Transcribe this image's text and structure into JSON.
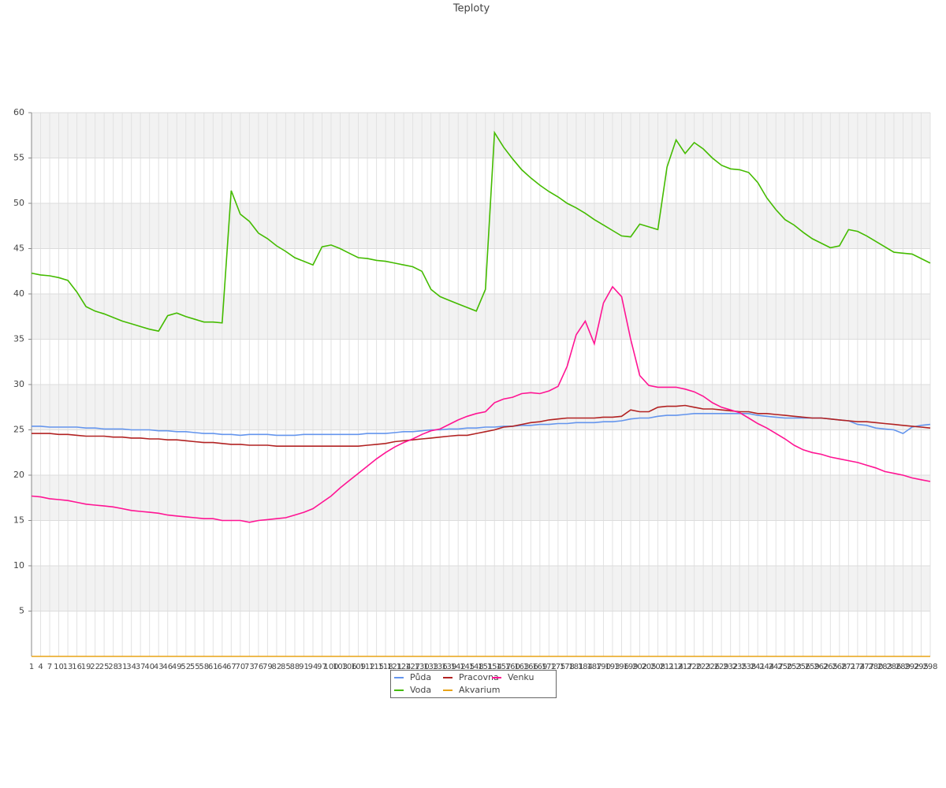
{
  "chart_data": {
    "type": "line",
    "title": "Teploty",
    "categories": [
      1,
      4,
      7,
      10,
      13,
      16,
      19,
      22,
      25,
      28,
      31,
      34,
      37,
      40,
      43,
      46,
      49,
      52,
      55,
      58,
      61,
      64,
      67,
      70,
      73,
      76,
      79,
      82,
      85,
      88,
      91,
      94,
      97,
      100,
      103,
      106,
      109,
      112,
      115,
      118,
      121,
      124,
      127,
      130,
      133,
      136,
      139,
      142,
      145,
      148,
      151,
      154,
      157,
      160,
      163,
      166,
      169,
      172,
      175,
      178,
      181,
      184,
      187,
      190,
      193,
      196,
      199,
      202,
      205,
      208,
      211,
      214,
      217,
      220,
      223,
      226,
      229,
      232,
      235,
      238,
      241,
      244,
      247,
      250,
      253,
      256,
      259,
      262,
      265,
      268,
      271,
      274,
      277,
      280,
      283,
      286,
      289,
      292,
      295,
      298
    ],
    "ylim": [
      0,
      60
    ],
    "yticks": [
      5,
      10,
      15,
      20,
      25,
      30,
      35,
      40,
      45,
      50,
      55,
      60
    ],
    "grid": true,
    "series": [
      {
        "name": "Půda",
        "color": "#6495ed",
        "values": [
          25.4,
          25.4,
          25.3,
          25.3,
          25.3,
          25.3,
          25.2,
          25.2,
          25.1,
          25.1,
          25.1,
          25.0,
          25.0,
          25.0,
          24.9,
          24.9,
          24.8,
          24.8,
          24.7,
          24.6,
          24.6,
          24.5,
          24.5,
          24.4,
          24.5,
          24.5,
          24.5,
          24.4,
          24.4,
          24.4,
          24.5,
          24.5,
          24.5,
          24.5,
          24.5,
          24.5,
          24.5,
          24.6,
          24.6,
          24.6,
          24.7,
          24.8,
          24.8,
          24.9,
          25.0,
          25.0,
          25.1,
          25.1,
          25.2,
          25.2,
          25.3,
          25.3,
          25.4,
          25.4,
          25.5,
          25.5,
          25.6,
          25.6,
          25.7,
          25.7,
          25.8,
          25.8,
          25.8,
          25.9,
          25.9,
          26.0,
          26.2,
          26.3,
          26.3,
          26.5,
          26.6,
          26.6,
          26.7,
          26.8,
          26.8,
          26.8,
          26.8,
          26.8,
          26.8,
          26.8,
          26.6,
          26.5,
          26.4,
          26.3,
          26.3,
          26.3,
          26.3,
          26.3,
          26.2,
          26.1,
          26.0,
          25.6,
          25.5,
          25.2,
          25.1,
          25.0,
          24.6,
          25.3,
          25.5,
          25.6
        ]
      },
      {
        "name": "Voda",
        "color": "#44bb00",
        "values": [
          42.3,
          42.1,
          42.0,
          41.8,
          41.5,
          40.2,
          38.6,
          38.1,
          37.8,
          37.4,
          37.0,
          36.7,
          36.4,
          36.1,
          35.9,
          37.6,
          37.9,
          37.5,
          37.2,
          36.9,
          36.9,
          36.8,
          51.4,
          48.8,
          48.0,
          46.7,
          46.1,
          45.3,
          44.7,
          44.0,
          43.6,
          43.2,
          45.2,
          45.4,
          45.0,
          44.5,
          44.0,
          43.9,
          43.7,
          43.6,
          43.4,
          43.2,
          43.0,
          42.5,
          40.5,
          39.7,
          39.3,
          38.9,
          38.5,
          38.1,
          40.5,
          57.8,
          56.2,
          54.9,
          53.7,
          52.8,
          52.0,
          51.3,
          50.7,
          50.0,
          49.5,
          48.9,
          48.2,
          47.6,
          47.0,
          46.4,
          46.3,
          47.7,
          47.4,
          47.1,
          54.0,
          57.0,
          55.5,
          56.7,
          56.0,
          55.0,
          54.2,
          53.8,
          53.7,
          53.4,
          52.3,
          50.6,
          49.3,
          48.2,
          47.6,
          46.8,
          46.1,
          45.6,
          45.1,
          45.3,
          47.1,
          46.9,
          46.4,
          45.8,
          45.2,
          44.6,
          44.5,
          44.4,
          43.9,
          43.4
        ]
      },
      {
        "name": "Pracovna",
        "color": "#b22222",
        "values": [
          24.6,
          24.6,
          24.6,
          24.5,
          24.5,
          24.4,
          24.3,
          24.3,
          24.3,
          24.2,
          24.2,
          24.1,
          24.1,
          24.0,
          24.0,
          23.9,
          23.9,
          23.8,
          23.7,
          23.6,
          23.6,
          23.5,
          23.4,
          23.4,
          23.3,
          23.3,
          23.3,
          23.2,
          23.2,
          23.2,
          23.2,
          23.2,
          23.2,
          23.2,
          23.2,
          23.2,
          23.2,
          23.3,
          23.4,
          23.5,
          23.7,
          23.8,
          23.9,
          24.0,
          24.1,
          24.2,
          24.3,
          24.4,
          24.4,
          24.6,
          24.8,
          25.0,
          25.3,
          25.4,
          25.6,
          25.8,
          25.9,
          26.1,
          26.2,
          26.3,
          26.3,
          26.3,
          26.3,
          26.4,
          26.4,
          26.5,
          27.2,
          27.0,
          27.0,
          27.5,
          27.6,
          27.6,
          27.7,
          27.5,
          27.3,
          27.3,
          27.2,
          27.1,
          27.0,
          27.0,
          26.8,
          26.8,
          26.7,
          26.6,
          26.5,
          26.4,
          26.3,
          26.3,
          26.2,
          26.1,
          26.0,
          25.9,
          25.9,
          25.8,
          25.7,
          25.6,
          25.5,
          25.4,
          25.3,
          25.2
        ]
      },
      {
        "name": "Akvarium",
        "color": "#e8a317",
        "values": [
          0,
          0,
          0,
          0,
          0,
          0,
          0,
          0,
          0,
          0,
          0,
          0,
          0,
          0,
          0,
          0,
          0,
          0,
          0,
          0,
          0,
          0,
          0,
          0,
          0,
          0,
          0,
          0,
          0,
          0,
          0,
          0,
          0,
          0,
          0,
          0,
          0,
          0,
          0,
          0,
          0,
          0,
          0,
          0,
          0,
          0,
          0,
          0,
          0,
          0,
          0,
          0,
          0,
          0,
          0,
          0,
          0,
          0,
          0,
          0,
          0,
          0,
          0,
          0,
          0,
          0,
          0,
          0,
          0,
          0,
          0,
          0,
          0,
          0,
          0,
          0,
          0,
          0,
          0,
          0,
          0,
          0,
          0,
          0,
          0,
          0,
          0,
          0,
          0,
          0,
          0,
          0,
          0,
          0,
          0,
          0,
          0,
          0,
          0,
          0
        ]
      },
      {
        "name": "Venku",
        "color": "#ff1493",
        "values": [
          17.7,
          17.6,
          17.4,
          17.3,
          17.2,
          17.0,
          16.8,
          16.7,
          16.6,
          16.5,
          16.3,
          16.1,
          16.0,
          15.9,
          15.8,
          15.6,
          15.5,
          15.4,
          15.3,
          15.2,
          15.2,
          15.0,
          15.0,
          15.0,
          14.8,
          15.0,
          15.1,
          15.2,
          15.3,
          15.6,
          15.9,
          16.3,
          17.0,
          17.7,
          18.6,
          19.4,
          20.2,
          21.0,
          21.8,
          22.5,
          23.1,
          23.6,
          24.0,
          24.5,
          24.9,
          25.1,
          25.6,
          26.1,
          26.5,
          26.8,
          27.0,
          28.0,
          28.4,
          28.6,
          29.0,
          29.1,
          29.0,
          29.3,
          29.8,
          32.0,
          35.5,
          37.0,
          34.5,
          39.0,
          40.8,
          39.7,
          35.0,
          31.0,
          29.9,
          29.7,
          29.7,
          29.7,
          29.5,
          29.2,
          28.7,
          28.0,
          27.5,
          27.2,
          26.9,
          26.3,
          25.7,
          25.2,
          24.6,
          24.0,
          23.3,
          22.8,
          22.5,
          22.3,
          22.0,
          21.8,
          21.6,
          21.4,
          21.1,
          20.8,
          20.4,
          20.2,
          20.0,
          19.7,
          19.5,
          19.3
        ]
      }
    ]
  }
}
